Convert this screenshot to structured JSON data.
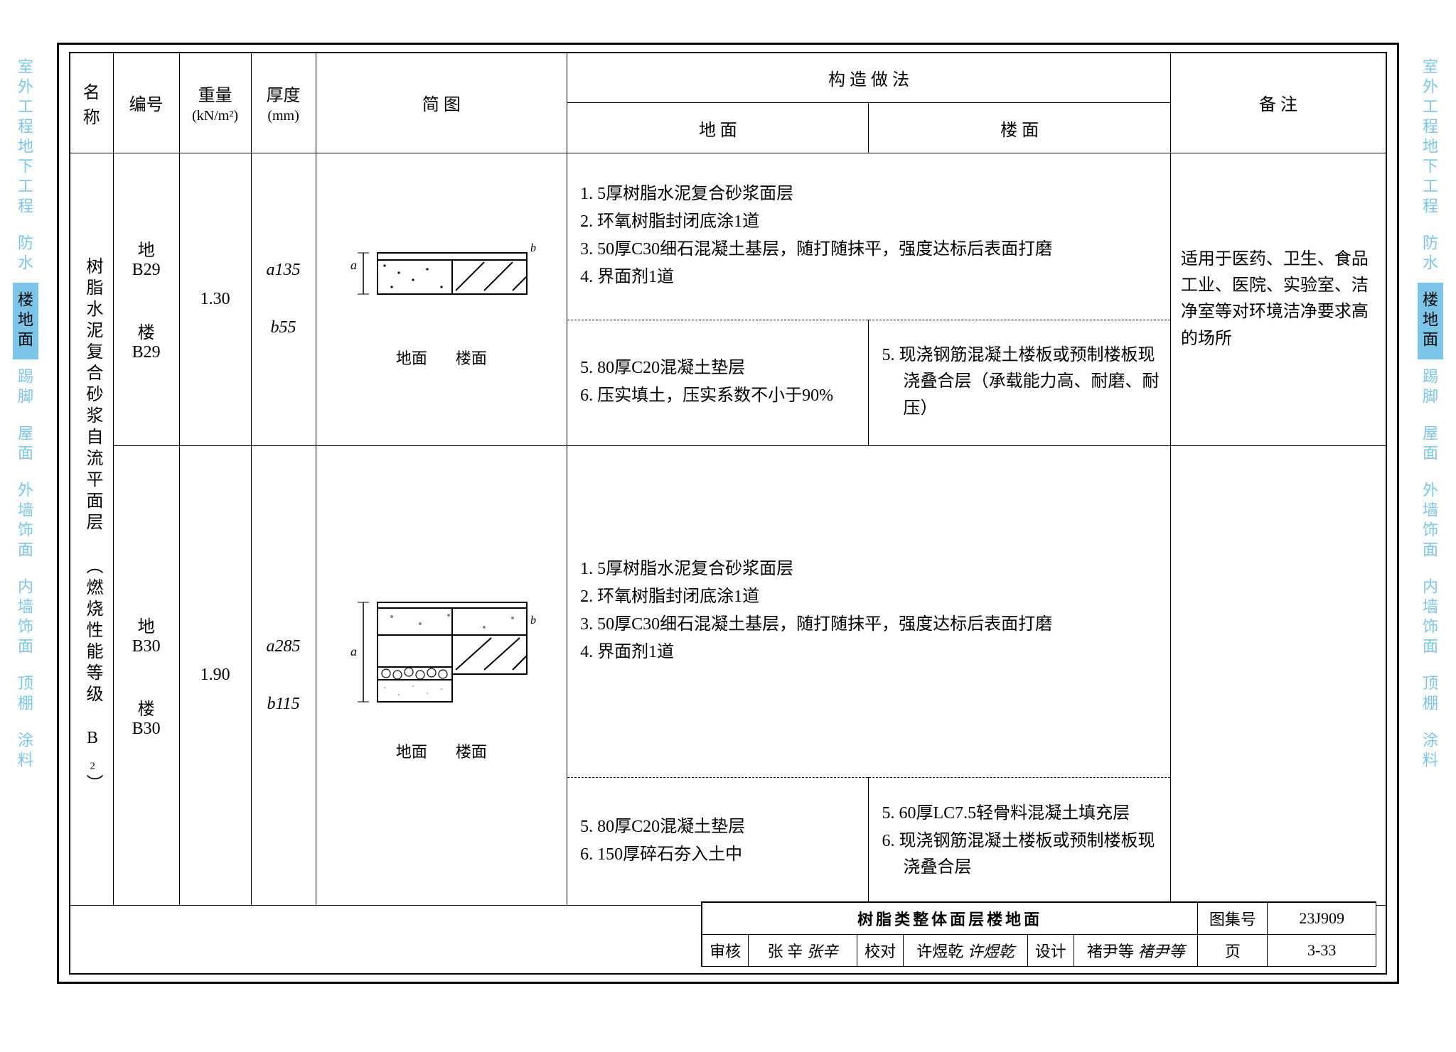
{
  "side_tabs": [
    "室外工程地下工程",
    "防水",
    "楼地面",
    "踢脚",
    "屋面",
    "外墙饰面",
    "内墙饰面",
    "顶棚",
    "涂料"
  ],
  "active_tab_index": 2,
  "headers": {
    "name": "名称",
    "code": "编号",
    "weight": "重量",
    "weight_unit": "(kN/m²)",
    "thick": "厚度",
    "thick_unit": "(mm)",
    "diagram": "简  图",
    "method": "构 造 做 法",
    "ground": "地  面",
    "floor": "楼  面",
    "note": "备  注"
  },
  "row_name": "树脂水泥复合砂浆自流平面层  （燃烧性能等级 B₂）",
  "rows": [
    {
      "codes": [
        "地B29",
        "楼B29"
      ],
      "weight": "1.30",
      "thick_a": "a135",
      "thick_b": "b55",
      "diag_left": "地面",
      "diag_right": "楼面",
      "ground_top": [
        "1.  5厚树脂水泥复合砂浆面层",
        "2.  环氧树脂封闭底涂1道",
        "3.  50厚C30细石混凝土基层，随打随抹平，强度达标后表面打磨",
        "4.  界面剂1道"
      ],
      "ground_bot": [
        "5.  80厚C20混凝土垫层",
        "6.  压实填土，压实系数不小于90%"
      ],
      "floor_bot": [
        "5.  现浇钢筋混凝土楼板或预制楼板现浇叠合层（承载能力高、耐磨、耐压）"
      ],
      "note": "适用于医药、卫生、食品工业、医院、实验室、洁净室等对环境洁净要求高的场所"
    },
    {
      "codes": [
        "地B30",
        "楼B30"
      ],
      "weight": "1.90",
      "thick_a": "a285",
      "thick_b": "b115",
      "diag_left": "地面",
      "diag_right": "楼面",
      "ground_top": [
        "1.  5厚树脂水泥复合砂浆面层",
        "2.  环氧树脂封闭底涂1道",
        "3.  50厚C30细石混凝土基层，随打随抹平，强度达标后表面打磨",
        "4.  界面剂1道"
      ],
      "ground_bot": [
        "5.  80厚C20混凝土垫层",
        "6.  150厚碎石夯入土中"
      ],
      "floor_bot": [
        "5.  60厚LC7.5轻骨料混凝土填充层",
        "6.  现浇钢筋混凝土楼板或预制楼板现浇叠合层"
      ],
      "note": ""
    }
  ],
  "title_block": {
    "title": "树脂类整体面层楼地面",
    "album_label": "图集号",
    "album": "23J909",
    "page_label": "页",
    "page": "3-33",
    "review_label": "审核",
    "review_name": "张  辛",
    "review_sig": "张辛",
    "check_label": "校对",
    "check_name": "许煜乾",
    "check_sig": "许煜乾",
    "design_label": "设计",
    "design_name": "褚尹等",
    "design_sig": "褚尹等"
  }
}
